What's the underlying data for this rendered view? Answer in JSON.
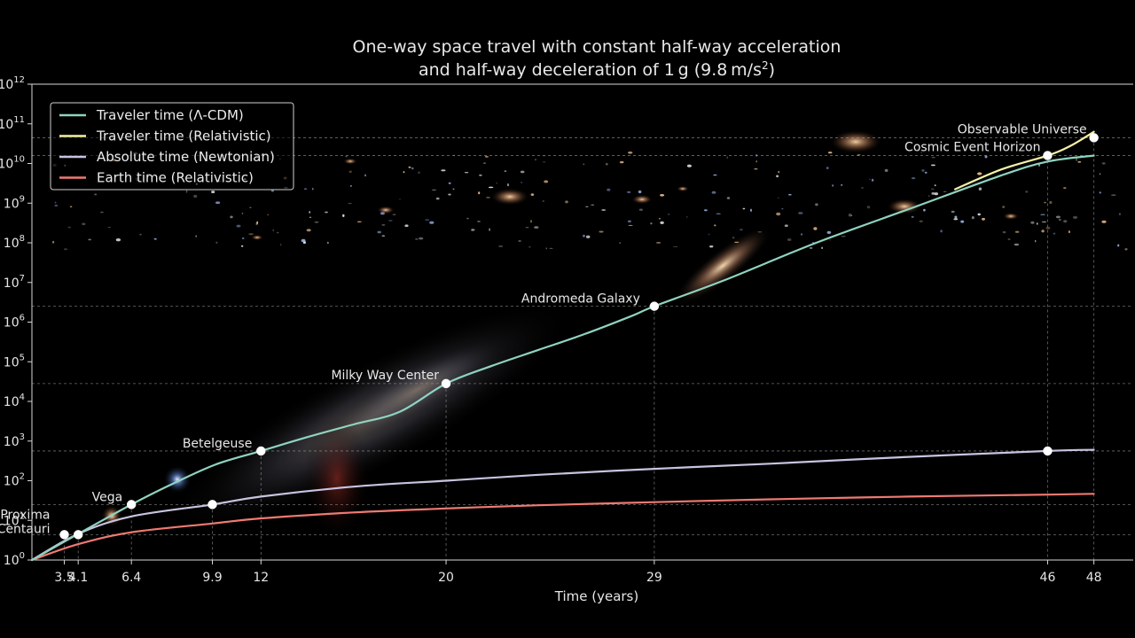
{
  "chart_data": {
    "type": "line",
    "title": "One-way space travel with constant half-way acceleration",
    "title_line2_prefix": "and half-way deceleration of 1 g (9.8 m/s",
    "title_line2_sup": "2",
    "title_line2_suffix": ")",
    "xlabel": "Time (years)",
    "ylabel": "",
    "x_scale": "linear",
    "y_scale": "log",
    "xlim": [
      0,
      48
    ],
    "ylim_exponent": [
      0,
      12
    ],
    "y_tick_base": "10",
    "y_ticks": [
      0,
      1,
      2,
      3,
      4,
      5,
      6,
      7,
      8,
      9,
      10,
      11,
      12
    ],
    "x_ticks": [
      {
        "value": 3.5,
        "label": "3.5"
      },
      {
        "value": 4.1,
        "label": "4.1"
      },
      {
        "value": 6.4,
        "label": "6.4"
      },
      {
        "value": 9.9,
        "label": "9.9"
      },
      {
        "value": 12,
        "label": "12"
      },
      {
        "value": 20,
        "label": "20"
      },
      {
        "value": 29,
        "label": "29"
      },
      {
        "value": 46,
        "label": "46"
      },
      {
        "value": 48,
        "label": "48"
      }
    ],
    "grid": "dashed reference lines at destinations",
    "legend_position": "top-left",
    "series": [
      {
        "name": "Traveler time (Λ-CDM)",
        "color": "#8fd3c0",
        "x": [
          2.1,
          4.1,
          6.4,
          8,
          10,
          12,
          14,
          16,
          18,
          20,
          22,
          24,
          26,
          28,
          29,
          32,
          36,
          40,
          44,
          46,
          48
        ],
        "log10_y": [
          0,
          0.66,
          1.4,
          1.87,
          2.4,
          2.75,
          3.1,
          3.42,
          3.74,
          4.45,
          4.9,
          5.3,
          5.7,
          6.15,
          6.4,
          7.05,
          8.0,
          8.85,
          9.7,
          10.05,
          10.2
        ]
      },
      {
        "name": "Traveler time (Relativistic)",
        "color": "#f4f1a6",
        "x": [
          42,
          44,
          46,
          47,
          48
        ],
        "log10_y": [
          9.35,
          9.85,
          10.2,
          10.45,
          10.8
        ]
      },
      {
        "name": "Absolute time (Newtonian)",
        "color": "#c9c3e0",
        "x": [
          2.1,
          4.1,
          6.4,
          9.9,
          12,
          16,
          20,
          24,
          29,
          34,
          40,
          46,
          48
        ],
        "log10_y": [
          0,
          0.66,
          1.1,
          1.4,
          1.6,
          1.85,
          2.0,
          2.15,
          2.3,
          2.43,
          2.6,
          2.75,
          2.78
        ]
      },
      {
        "name": "Earth time (Relativistic)",
        "color": "#ef7a72",
        "x": [
          2.1,
          4.1,
          6.4,
          9.9,
          12,
          16,
          20,
          24,
          29,
          34,
          40,
          46,
          48
        ],
        "log10_y": [
          0,
          0.4,
          0.7,
          0.92,
          1.05,
          1.2,
          1.3,
          1.38,
          1.46,
          1.53,
          1.6,
          1.65,
          1.67
        ]
      }
    ],
    "markers": [
      {
        "x": 3.5,
        "log10_y": 0.64
      },
      {
        "x": 4.1,
        "log10_y": 0.64
      },
      {
        "x": 6.4,
        "log10_y": 1.4
      },
      {
        "x": 9.9,
        "log10_y": 1.4
      },
      {
        "x": 12,
        "log10_y": 2.75
      },
      {
        "x": 20,
        "log10_y": 4.45
      },
      {
        "x": 29,
        "log10_y": 6.4
      },
      {
        "x": 46,
        "log10_y": 2.75
      },
      {
        "x": 46,
        "log10_y": 10.2
      },
      {
        "x": 48,
        "log10_y": 10.65
      }
    ],
    "destinations": [
      {
        "label": "Proxima",
        "label2": "Centauri",
        "x": 3.5,
        "log10_y": 0.64
      },
      {
        "label": "Vega",
        "x": 6.4,
        "log10_y": 1.4
      },
      {
        "label": "Betelgeuse",
        "x": 12,
        "log10_y": 2.75
      },
      {
        "label": "Milky Way Center",
        "x": 20,
        "log10_y": 4.45
      },
      {
        "label": "Andromeda Galaxy",
        "x": 29,
        "log10_y": 6.4
      },
      {
        "label": "Cosmic Event Horizon",
        "x": 46,
        "log10_y": 10.2
      },
      {
        "label": "Observable Universe",
        "x": 48,
        "log10_y": 10.65
      }
    ]
  }
}
